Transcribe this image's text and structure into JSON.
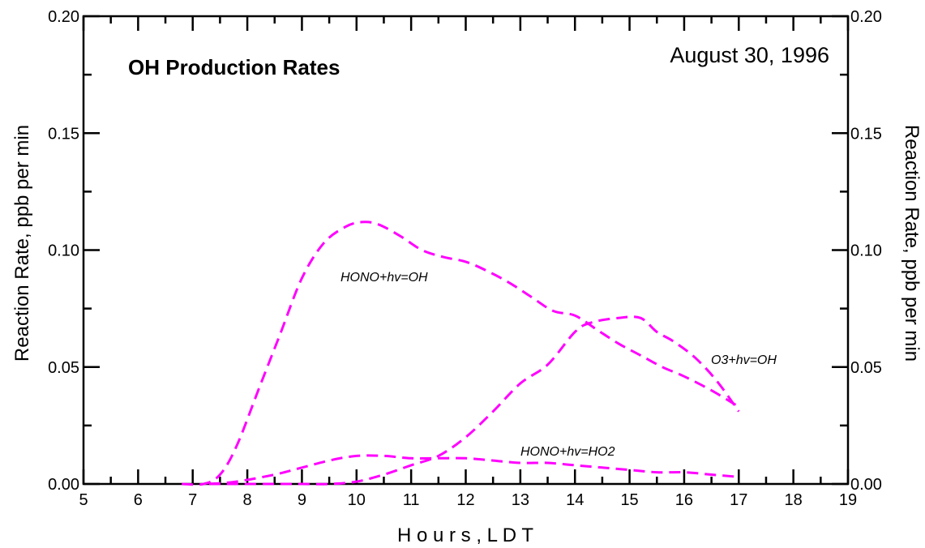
{
  "chart_data": {
    "type": "line",
    "title": "OH Production Rates",
    "subtitle": "August 30, 1996",
    "xlabel": "H o u r s ,   L D T",
    "ylabel": "Reaction Rate, ppb per min",
    "ylabel_right": "Reaction Rate, ppb per min",
    "xlim": [
      5,
      19
    ],
    "ylim": [
      0,
      0.2
    ],
    "x_ticks": [
      "5",
      "6",
      "7",
      "8",
      "9",
      "10",
      "11",
      "12",
      "13",
      "14",
      "15",
      "16",
      "17",
      "18",
      "19"
    ],
    "y_ticks": [
      "0.00",
      "0.05",
      "0.10",
      "0.15",
      "0.20"
    ],
    "y_tick_values": [
      0,
      0.05,
      0.1,
      0.15,
      0.2
    ],
    "grid": false,
    "line_color": "#ff00ff",
    "line_style": "dashed",
    "series": [
      {
        "name": "HONO+hv=OH",
        "x": [
          6.8,
          7.2,
          7.5,
          7.8,
          8.2,
          8.6,
          9.0,
          9.4,
          9.8,
          10.1,
          10.4,
          10.8,
          11.2,
          11.6,
          12.0,
          12.4,
          12.8,
          13.2,
          13.6,
          14.0,
          14.4,
          14.8,
          15.2,
          15.6,
          16.0,
          16.5,
          17.0
        ],
        "y": [
          0.0,
          0.0,
          0.004,
          0.016,
          0.04,
          0.064,
          0.088,
          0.103,
          0.11,
          0.112,
          0.111,
          0.106,
          0.1,
          0.097,
          0.095,
          0.091,
          0.086,
          0.08,
          0.074,
          0.072,
          0.066,
          0.06,
          0.055,
          0.05,
          0.046,
          0.04,
          0.033
        ]
      },
      {
        "name": "O3+hv=OH",
        "x": [
          7.3,
          7.8,
          8.5,
          9.0,
          9.5,
          10.0,
          10.5,
          11.0,
          11.5,
          12.0,
          12.5,
          13.0,
          13.5,
          14.0,
          14.3,
          14.8,
          15.2,
          15.5,
          15.8,
          16.2,
          16.6,
          17.0
        ],
        "y": [
          0.0,
          0.0,
          0.0,
          0.0,
          0.0,
          0.001,
          0.004,
          0.008,
          0.012,
          0.02,
          0.031,
          0.043,
          0.051,
          0.065,
          0.069,
          0.071,
          0.071,
          0.065,
          0.061,
          0.054,
          0.044,
          0.031
        ]
      },
      {
        "name": "HONO+hv=HO2",
        "x": [
          7.3,
          7.8,
          8.5,
          9.0,
          9.5,
          10.0,
          10.5,
          11.0,
          11.5,
          12.0,
          12.5,
          13.0,
          13.5,
          14.0,
          14.5,
          15.0,
          15.5,
          16.0,
          16.5,
          17.0
        ],
        "y": [
          0.0,
          0.001,
          0.004,
          0.007,
          0.01,
          0.012,
          0.012,
          0.011,
          0.011,
          0.011,
          0.01,
          0.009,
          0.009,
          0.008,
          0.007,
          0.006,
          0.005,
          0.005,
          0.004,
          0.003
        ]
      }
    ]
  }
}
